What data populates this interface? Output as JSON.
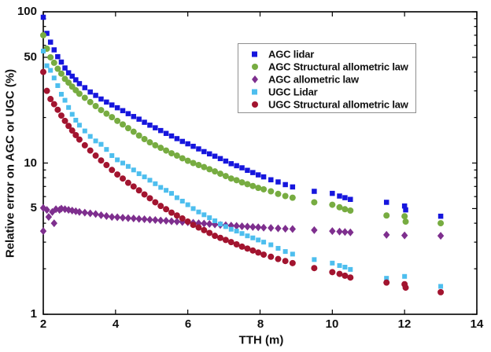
{
  "figure": {
    "background": "#ffffff"
  },
  "chart_data": {
    "type": "scatter",
    "title": "",
    "xlabel": "TTH (m)",
    "ylabel": "Relative error on AGC or UGC (%)",
    "xscale": "linear",
    "yscale": "log",
    "xlim": [
      2,
      14
    ],
    "ylim": [
      1,
      100
    ],
    "grid": false,
    "xticks": [
      2,
      4,
      6,
      8,
      10,
      12,
      14
    ],
    "xtick_labels": [
      "2",
      "4",
      "6",
      "8",
      "10",
      "12",
      "14"
    ],
    "ytick_values": [
      100,
      50,
      10,
      5,
      1
    ],
    "ytick_labels": [
      "100",
      "50",
      "10",
      "5",
      "1"
    ],
    "y_minor_ticks": [
      2,
      3,
      4,
      6,
      7,
      8,
      9,
      20,
      30,
      40,
      60,
      70,
      80,
      90
    ],
    "legend": {
      "position": "inside-upper-right",
      "border_color": "#8f8f8f"
    },
    "series": [
      {
        "name": "AGC lidar",
        "marker": "square",
        "color": "#1616dd",
        "size": 6.5,
        "points": [
          [
            2,
            92
          ],
          [
            2.1,
            72
          ],
          [
            2.2,
            63
          ],
          [
            2.3,
            56
          ],
          [
            2.4,
            50.5
          ],
          [
            2.5,
            46.5
          ],
          [
            2.6,
            42.5
          ],
          [
            2.7,
            39.5
          ],
          [
            2.8,
            37.5
          ],
          [
            2.9,
            35.5
          ],
          [
            3,
            33.5
          ],
          [
            3.15,
            31.5
          ],
          [
            3.3,
            29.5
          ],
          [
            3.45,
            28
          ],
          [
            3.6,
            26.5
          ],
          [
            3.75,
            25.3
          ],
          [
            3.9,
            24.2
          ],
          [
            4.05,
            23.2
          ],
          [
            4.2,
            22.2
          ],
          [
            4.35,
            21.2
          ],
          [
            4.5,
            20.3
          ],
          [
            4.65,
            19.5
          ],
          [
            4.8,
            18.6
          ],
          [
            4.95,
            17.8
          ],
          [
            5.1,
            17.1
          ],
          [
            5.25,
            16.4
          ],
          [
            5.4,
            15.7
          ],
          [
            5.55,
            15.1
          ],
          [
            5.7,
            14.5
          ],
          [
            5.85,
            13.9
          ],
          [
            6,
            13.4
          ],
          [
            6.15,
            12.9
          ],
          [
            6.3,
            12.4
          ],
          [
            6.45,
            11.9
          ],
          [
            6.6,
            11.5
          ],
          [
            6.75,
            11.1
          ],
          [
            6.9,
            10.7
          ],
          [
            7.05,
            10.3
          ],
          [
            7.2,
            9.9
          ],
          [
            7.35,
            9.6
          ],
          [
            7.5,
            9.3
          ],
          [
            7.65,
            8.95
          ],
          [
            7.8,
            8.65
          ],
          [
            7.95,
            8.35
          ],
          [
            8.1,
            8.1
          ],
          [
            8.3,
            7.75
          ],
          [
            8.5,
            7.5
          ],
          [
            8.7,
            7.2
          ],
          [
            8.9,
            6.95
          ],
          [
            9.5,
            6.5
          ],
          [
            10,
            6.3
          ],
          [
            10.2,
            6.05
          ],
          [
            10.35,
            5.9
          ],
          [
            10.5,
            5.75
          ],
          [
            11.5,
            5.5
          ],
          [
            12,
            5.2
          ],
          [
            12.03,
            4.9
          ],
          [
            13,
            4.45
          ]
        ]
      },
      {
        "name": "AGC Structural allometric law",
        "marker": "circle",
        "color": "#77ac41",
        "size": 8,
        "points": [
          [
            2,
            70
          ],
          [
            2.1,
            57
          ],
          [
            2.2,
            50
          ],
          [
            2.3,
            46
          ],
          [
            2.4,
            42
          ],
          [
            2.5,
            39
          ],
          [
            2.6,
            36
          ],
          [
            2.7,
            34
          ],
          [
            2.8,
            32
          ],
          [
            2.9,
            30.3
          ],
          [
            3,
            28.7
          ],
          [
            3.15,
            27
          ],
          [
            3.3,
            25.3
          ],
          [
            3.45,
            23.8
          ],
          [
            3.6,
            22.4
          ],
          [
            3.75,
            21.2
          ],
          [
            3.9,
            20.1
          ],
          [
            4.05,
            19
          ],
          [
            4.2,
            18
          ],
          [
            4.35,
            17
          ],
          [
            4.5,
            16.1
          ],
          [
            4.65,
            15.2
          ],
          [
            4.8,
            14.4
          ],
          [
            4.95,
            13.7
          ],
          [
            5.1,
            13.1
          ],
          [
            5.25,
            12.6
          ],
          [
            5.4,
            12.1
          ],
          [
            5.55,
            11.6
          ],
          [
            5.7,
            11.2
          ],
          [
            5.85,
            10.75
          ],
          [
            6,
            10.35
          ],
          [
            6.15,
            10
          ],
          [
            6.3,
            9.7
          ],
          [
            6.45,
            9.4
          ],
          [
            6.6,
            9.1
          ],
          [
            6.75,
            8.8
          ],
          [
            6.9,
            8.5
          ],
          [
            7.05,
            8.2
          ],
          [
            7.2,
            7.9
          ],
          [
            7.35,
            7.7
          ],
          [
            7.5,
            7.45
          ],
          [
            7.65,
            7.25
          ],
          [
            7.8,
            7.05
          ],
          [
            7.95,
            6.85
          ],
          [
            8.1,
            6.7
          ],
          [
            8.3,
            6.5
          ],
          [
            8.5,
            6.25
          ],
          [
            8.7,
            6.05
          ],
          [
            8.9,
            5.9
          ],
          [
            9.5,
            5.5
          ],
          [
            10,
            5.3
          ],
          [
            10.2,
            5.1
          ],
          [
            10.35,
            4.95
          ],
          [
            10.5,
            4.85
          ],
          [
            11.5,
            4.5
          ],
          [
            12,
            4.45
          ],
          [
            12.03,
            4.1
          ],
          [
            13,
            4
          ]
        ]
      },
      {
        "name": "AGC allometric law",
        "marker": "diamond",
        "color": "#7e2f8e",
        "size": 10,
        "points": [
          [
            2,
            5.05
          ],
          [
            2,
            3.55
          ],
          [
            2.1,
            4.9
          ],
          [
            2.15,
            4.4
          ],
          [
            2.25,
            4.75
          ],
          [
            2.3,
            4
          ],
          [
            2.35,
            4.95
          ],
          [
            2.45,
            4.9
          ],
          [
            2.5,
            5
          ],
          [
            2.6,
            4.95
          ],
          [
            2.7,
            4.9
          ],
          [
            2.8,
            4.85
          ],
          [
            2.9,
            4.8
          ],
          [
            3,
            4.75
          ],
          [
            3.15,
            4.7
          ],
          [
            3.3,
            4.65
          ],
          [
            3.45,
            4.6
          ],
          [
            3.6,
            4.52
          ],
          [
            3.75,
            4.46
          ],
          [
            3.9,
            4.4
          ],
          [
            4.05,
            4.38
          ],
          [
            4.2,
            4.35
          ],
          [
            4.35,
            4.32
          ],
          [
            4.5,
            4.3
          ],
          [
            4.65,
            4.27
          ],
          [
            4.8,
            4.25
          ],
          [
            4.95,
            4.22
          ],
          [
            5.1,
            4.2
          ],
          [
            5.25,
            4.17
          ],
          [
            5.4,
            4.15
          ],
          [
            5.55,
            4.12
          ],
          [
            5.7,
            4.1
          ],
          [
            5.85,
            4.08
          ],
          [
            6,
            4.06
          ],
          [
            6.15,
            4.03
          ],
          [
            6.3,
            4
          ],
          [
            6.45,
            3.98
          ],
          [
            6.6,
            3.96
          ],
          [
            6.75,
            3.93
          ],
          [
            6.9,
            3.9
          ],
          [
            7.05,
            3.88
          ],
          [
            7.2,
            3.86
          ],
          [
            7.35,
            3.84
          ],
          [
            7.5,
            3.82
          ],
          [
            7.65,
            3.8
          ],
          [
            7.8,
            3.78
          ],
          [
            7.95,
            3.76
          ],
          [
            8.1,
            3.74
          ],
          [
            8.3,
            3.72
          ],
          [
            8.5,
            3.7
          ],
          [
            8.7,
            3.68
          ],
          [
            8.9,
            3.66
          ],
          [
            9.5,
            3.6
          ],
          [
            10,
            3.55
          ],
          [
            10.2,
            3.52
          ],
          [
            10.35,
            3.5
          ],
          [
            10.5,
            3.48
          ],
          [
            11.5,
            3.35
          ],
          [
            12,
            3.32
          ],
          [
            13,
            3.3
          ]
        ]
      },
      {
        "name": "UGC Lidar",
        "marker": "square",
        "color": "#4dbeee",
        "size": 6,
        "points": [
          [
            2,
            55
          ],
          [
            2.1,
            44
          ],
          [
            2.2,
            41
          ],
          [
            2.3,
            36.5
          ],
          [
            2.4,
            32.5
          ],
          [
            2.5,
            28.5
          ],
          [
            2.6,
            26
          ],
          [
            2.7,
            23.3
          ],
          [
            2.8,
            21
          ],
          [
            2.9,
            19.2
          ],
          [
            3,
            17.8
          ],
          [
            3.15,
            16.3
          ],
          [
            3.3,
            15
          ],
          [
            3.45,
            14
          ],
          [
            3.6,
            13.3
          ],
          [
            3.75,
            12.3
          ],
          [
            3.9,
            11.2
          ],
          [
            4.05,
            10.5
          ],
          [
            4.2,
            10
          ],
          [
            4.35,
            9.5
          ],
          [
            4.5,
            9
          ],
          [
            4.65,
            8.5
          ],
          [
            4.8,
            8.1
          ],
          [
            4.95,
            7.7
          ],
          [
            5.1,
            7.3
          ],
          [
            5.25,
            6.9
          ],
          [
            5.4,
            6.6
          ],
          [
            5.55,
            6.3
          ],
          [
            5.7,
            5.9
          ],
          [
            5.85,
            5.6
          ],
          [
            6,
            5.3
          ],
          [
            6.15,
            5
          ],
          [
            6.3,
            4.75
          ],
          [
            6.45,
            4.55
          ],
          [
            6.6,
            4.35
          ],
          [
            6.75,
            4.15
          ],
          [
            6.9,
            3.95
          ],
          [
            7.05,
            3.8
          ],
          [
            7.2,
            3.65
          ],
          [
            7.35,
            3.55
          ],
          [
            7.5,
            3.42
          ],
          [
            7.65,
            3.3
          ],
          [
            7.8,
            3.2
          ],
          [
            7.95,
            3.1
          ],
          [
            8.1,
            3
          ],
          [
            8.3,
            2.88
          ],
          [
            8.5,
            2.73
          ],
          [
            8.7,
            2.6
          ],
          [
            8.9,
            2.5
          ],
          [
            9.5,
            2.3
          ],
          [
            10,
            2.18
          ],
          [
            10.2,
            2.1
          ],
          [
            10.35,
            2.05
          ],
          [
            10.5,
            1.98
          ],
          [
            11.5,
            1.73
          ],
          [
            12,
            1.78
          ],
          [
            13,
            1.53
          ]
        ]
      },
      {
        "name": "UGC Structural allometric law",
        "marker": "circle",
        "color": "#a2142f",
        "size": 8,
        "points": [
          [
            2,
            40
          ],
          [
            2.1,
            30
          ],
          [
            2.2,
            26.5
          ],
          [
            2.3,
            24.5
          ],
          [
            2.4,
            22.5
          ],
          [
            2.5,
            20.6
          ],
          [
            2.6,
            19
          ],
          [
            2.7,
            17.6
          ],
          [
            2.8,
            16.4
          ],
          [
            2.9,
            15.3
          ],
          [
            3,
            14.3
          ],
          [
            3.15,
            13.1
          ],
          [
            3.3,
            12.1
          ],
          [
            3.45,
            11.2
          ],
          [
            3.6,
            10.4
          ],
          [
            3.75,
            9.7
          ],
          [
            3.9,
            9
          ],
          [
            4.05,
            8.4
          ],
          [
            4.2,
            7.9
          ],
          [
            4.35,
            7.4
          ],
          [
            4.5,
            7
          ],
          [
            4.65,
            6.6
          ],
          [
            4.8,
            6.2
          ],
          [
            4.95,
            5.85
          ],
          [
            5.1,
            5.5
          ],
          [
            5.25,
            5.2
          ],
          [
            5.4,
            4.95
          ],
          [
            5.55,
            4.7
          ],
          [
            5.7,
            4.5
          ],
          [
            5.85,
            4.3
          ],
          [
            6,
            4.1
          ],
          [
            6.15,
            3.9
          ],
          [
            6.3,
            3.75
          ],
          [
            6.45,
            3.6
          ],
          [
            6.6,
            3.45
          ],
          [
            6.75,
            3.3
          ],
          [
            6.9,
            3.2
          ],
          [
            7.05,
            3.1
          ],
          [
            7.2,
            3
          ],
          [
            7.35,
            2.9
          ],
          [
            7.5,
            2.8
          ],
          [
            7.65,
            2.72
          ],
          [
            7.8,
            2.64
          ],
          [
            7.95,
            2.56
          ],
          [
            8.1,
            2.48
          ],
          [
            8.3,
            2.4
          ],
          [
            8.5,
            2.32
          ],
          [
            8.7,
            2.25
          ],
          [
            8.9,
            2.18
          ],
          [
            9.5,
            2.02
          ],
          [
            10,
            1.9
          ],
          [
            10.2,
            1.85
          ],
          [
            10.35,
            1.8
          ],
          [
            10.5,
            1.75
          ],
          [
            11.5,
            1.62
          ],
          [
            12,
            1.58
          ],
          [
            12.03,
            1.5
          ],
          [
            13,
            1.4
          ]
        ]
      }
    ]
  }
}
